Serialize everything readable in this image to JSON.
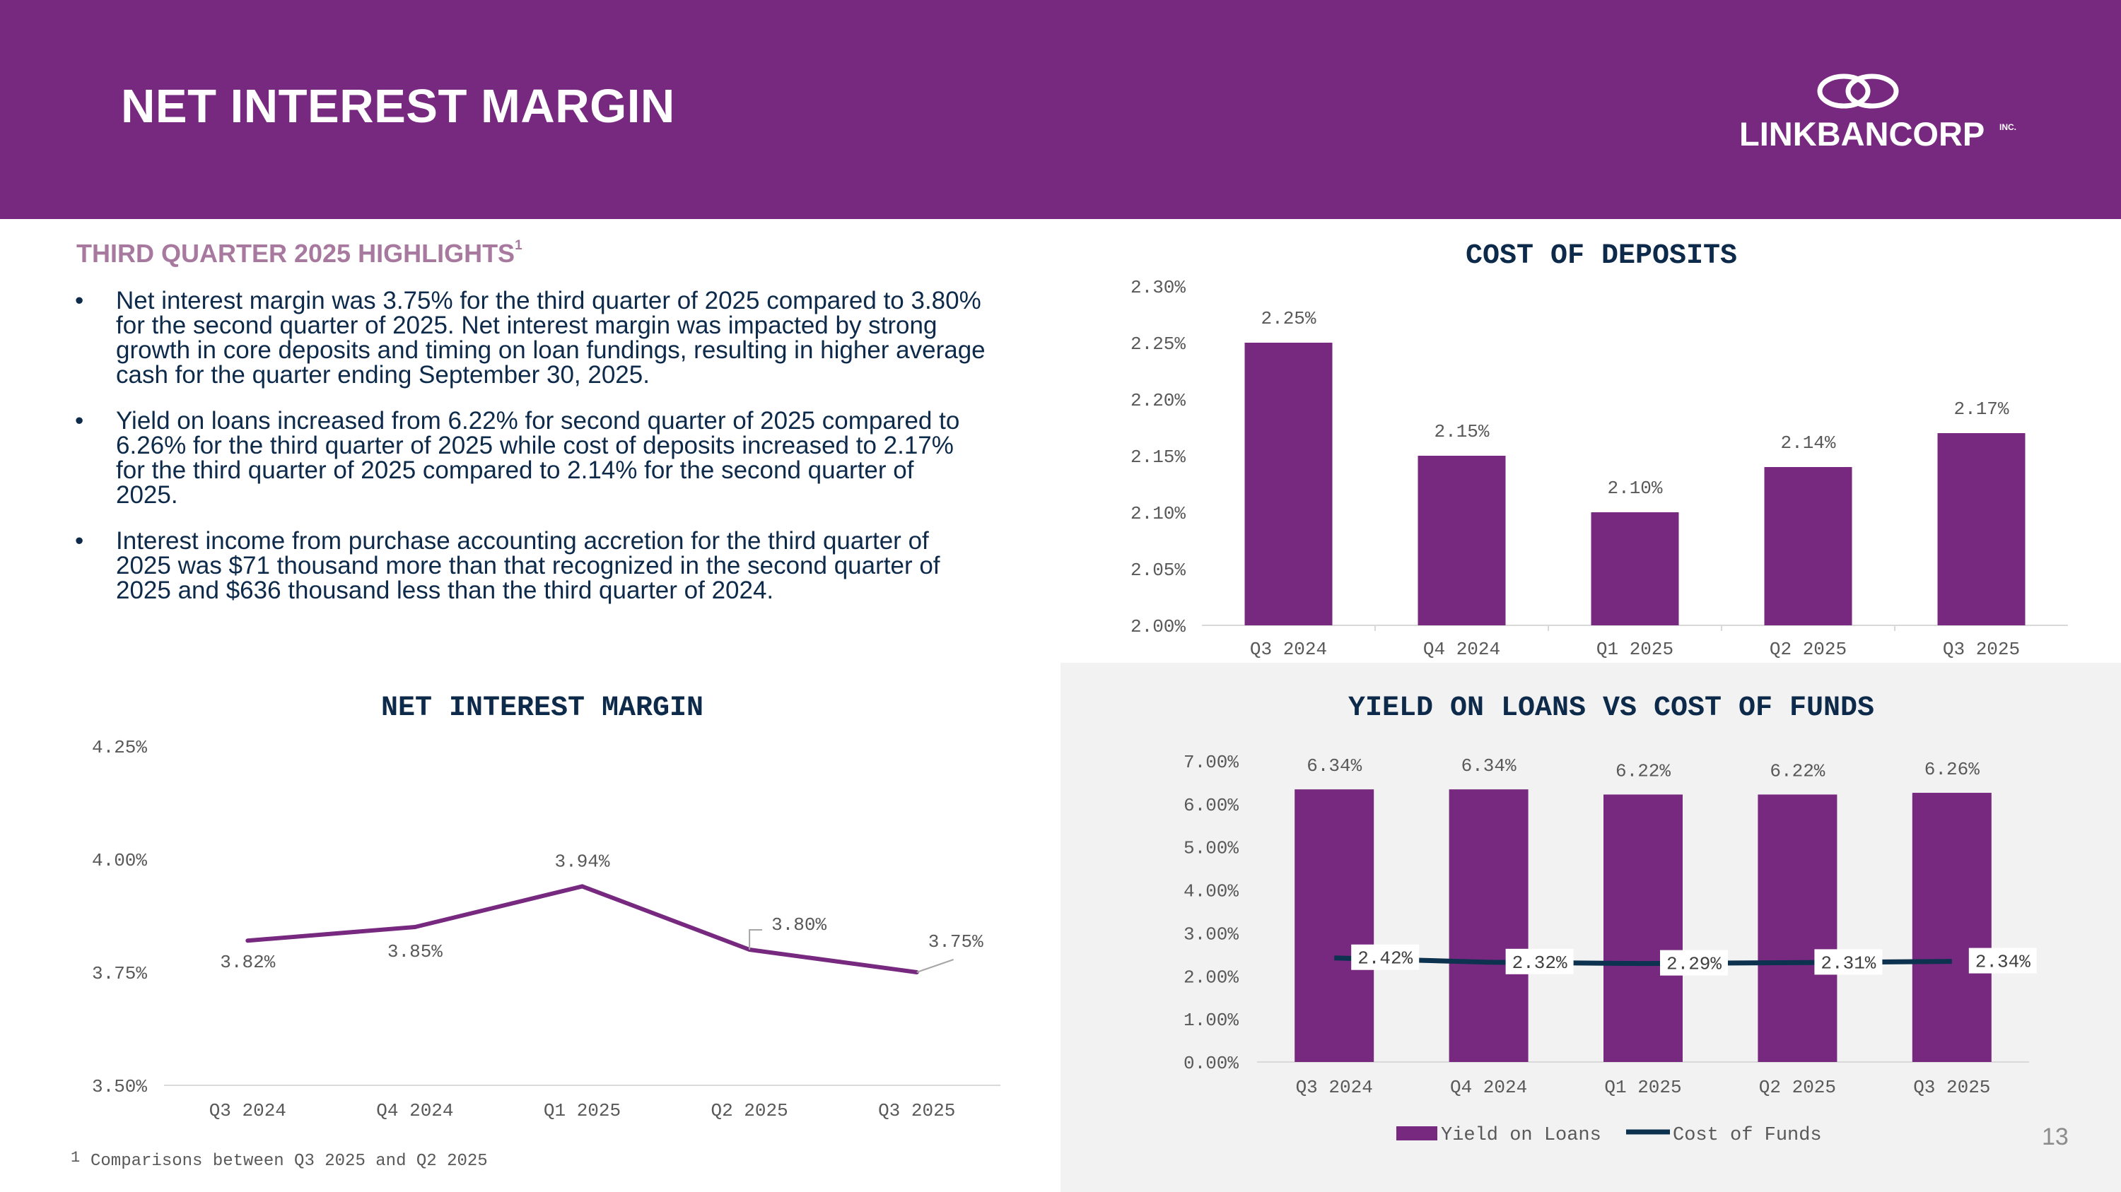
{
  "header": {
    "title": "NET INTEREST MARGIN",
    "logo_text": "LINKBANCORP",
    "logo_suffix": "INC."
  },
  "highlights": {
    "title": "THIRD QUARTER 2025 HIGHLIGHTS",
    "footnote_marker": "1",
    "bullet_symbol": "•",
    "bullets": [
      {
        "lines": [
          "Net interest margin was 3.75% for the third quarter of 2025 compared to 3.80%",
          "for the second quarter of 2025. Net interest margin was impacted by strong",
          "growth in core deposits and timing on loan fundings, resulting in higher average",
          "cash for the quarter ending September 30, 2025."
        ]
      },
      {
        "lines": [
          "Yield on loans increased from 6.22% for second quarter of 2025 compared to",
          "6.26% for the third quarter of 2025 while cost of deposits increased to 2.17%",
          "for the third quarter of 2025 compared to 2.14% for the second quarter of",
          "2025."
        ]
      },
      {
        "lines": [
          "Interest income from purchase accounting accretion for the third quarter of",
          "2025 was $71 thousand more than that recognized in the second quarter of",
          "2025 and $636 thousand less than the third quarter of 2024."
        ]
      }
    ]
  },
  "chart_data": [
    {
      "id": "cost_of_deposits",
      "type": "bar",
      "title": "COST OF DEPOSITS",
      "categories": [
        "Q3 2024",
        "Q4 2024",
        "Q1 2025",
        "Q2 2025",
        "Q3 2025"
      ],
      "values": [
        2.25,
        2.15,
        2.1,
        2.14,
        2.17
      ],
      "labels": [
        "2.25%",
        "2.15%",
        "2.10%",
        "2.14%",
        "2.17%"
      ],
      "ylim": [
        2.0,
        2.3
      ],
      "yticks": [
        "2.00%",
        "2.05%",
        "2.10%",
        "2.15%",
        "2.20%",
        "2.25%",
        "2.30%"
      ],
      "color": "#77297f"
    },
    {
      "id": "net_interest_margin",
      "type": "line",
      "title": "NET INTEREST MARGIN",
      "categories": [
        "Q3 2024",
        "Q4 2024",
        "Q1 2025",
        "Q2 2025",
        "Q3 2025"
      ],
      "values": [
        3.82,
        3.85,
        3.94,
        3.8,
        3.75
      ],
      "labels": [
        "3.82%",
        "3.85%",
        "3.94%",
        "3.80%",
        "3.75%"
      ],
      "ylim": [
        3.5,
        4.25
      ],
      "yticks": [
        "3.50%",
        "3.75%",
        "4.00%",
        "4.25%"
      ],
      "color": "#77297f"
    },
    {
      "id": "yield_vs_cost",
      "type": "bar",
      "title": "YIELD ON LOANS VS COST OF FUNDS",
      "categories": [
        "Q3 2024",
        "Q4 2024",
        "Q1 2025",
        "Q2 2025",
        "Q3 2025"
      ],
      "series": [
        {
          "name": "Yield on Loans",
          "type": "bar",
          "values": [
            6.34,
            6.34,
            6.22,
            6.22,
            6.26
          ],
          "labels": [
            "6.34%",
            "6.34%",
            "6.22%",
            "6.22%",
            "6.26%"
          ],
          "color": "#77297f"
        },
        {
          "name": "Cost of Funds",
          "type": "line",
          "values": [
            2.42,
            2.32,
            2.29,
            2.31,
            2.34
          ],
          "labels": [
            "2.42%",
            "2.32%",
            "2.29%",
            "2.31%",
            "2.34%"
          ],
          "color": "#0d3250"
        }
      ],
      "ylim": [
        0,
        7
      ],
      "yticks": [
        "0.00%",
        "1.00%",
        "2.00%",
        "3.00%",
        "4.00%",
        "5.00%",
        "6.00%",
        "7.00%"
      ],
      "legend": "bottom"
    }
  ],
  "footnote": {
    "number": "1",
    "text": "Comparisons between Q3 2025 and Q2 2025"
  },
  "page_number": "13"
}
